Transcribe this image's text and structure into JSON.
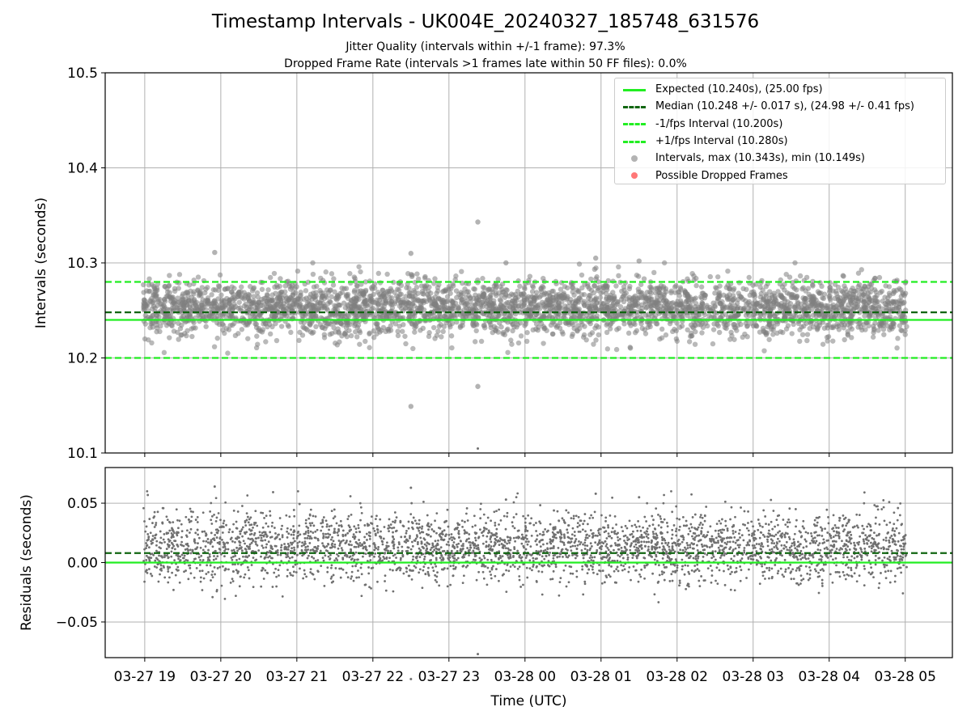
{
  "figure": {
    "title": "Timestamp Intervals - UK004E_20240327_185748_631576",
    "subtitle_1": "Jitter Quality (intervals within +/-1 frame): 97.3%",
    "subtitle_2": "Dropped Frame Rate (intervals >1 frames late within 50 FF files): 0.0%"
  },
  "legend": {
    "items": [
      {
        "label": "Expected (10.240s), (25.00 fps)",
        "style": "solid",
        "color": "#22ee22"
      },
      {
        "label": "Median (10.248 +/- 0.017 s), (24.98 +/- 0.41 fps)",
        "style": "dashed",
        "color": "#116611"
      },
      {
        "label": "-1/fps Interval (10.200s)",
        "style": "dashed",
        "color": "#22ee22"
      },
      {
        "label": "+1/fps Interval (10.280s)",
        "style": "dashed",
        "color": "#22ee22"
      },
      {
        "label": "Intervals, max (10.343s), min (10.149s)",
        "style": "dot",
        "color": "#808080"
      },
      {
        "label": "Possible Dropped Frames",
        "style": "dot",
        "color": "#ff5555"
      }
    ]
  },
  "chart_data": [
    {
      "type": "scatter",
      "name": "intervals",
      "title": "Timestamp Intervals - UK004E_20240327_185748_631576",
      "xlabel": "",
      "ylabel": "Intervals (seconds)",
      "ylim": [
        10.1,
        10.5
      ],
      "yticks": [
        10.1,
        10.2,
        10.3,
        10.4,
        10.5
      ],
      "ytick_labels": [
        "10.1",
        "10.2",
        "10.3",
        "10.4",
        "10.5"
      ],
      "grid": true,
      "legend_position": "top-right",
      "x_start_hours": 18.98,
      "x_end_hours": 29.02,
      "hlines": [
        {
          "name": "expected",
          "value": 10.24,
          "style": "solid",
          "color": "#22ee22"
        },
        {
          "name": "median",
          "value": 10.248,
          "style": "dashed",
          "color": "#116611"
        },
        {
          "name": "minus-1-fps",
          "value": 10.2,
          "style": "dashed",
          "color": "#22ee22"
        },
        {
          "name": "plus-1-fps",
          "value": 10.28,
          "style": "dashed",
          "color": "#22ee22"
        }
      ],
      "series": [
        {
          "name": "Intervals",
          "color": "#808080",
          "n_points": 3500,
          "max": 10.343,
          "min": 10.149,
          "center": 10.253,
          "spread": 0.017,
          "notable_points": [
            [
              23.38,
              10.343
            ],
            [
              22.5,
              10.149
            ],
            [
              23.38,
              10.17
            ],
            [
              19.92,
              10.311
            ],
            [
              22.5,
              10.31
            ],
            [
              23.75,
              10.3
            ],
            [
              24.93,
              10.305
            ],
            [
              25.5,
              10.302
            ]
          ]
        },
        {
          "name": "Possible Dropped Frames",
          "color": "#ff5555",
          "n_points": 0
        }
      ]
    },
    {
      "type": "scatter",
      "name": "residuals",
      "xlabel": "Time (UTC)",
      "ylabel": "Residuals (seconds)",
      "ylim": [
        -0.08,
        0.08
      ],
      "yticks": [
        -0.05,
        0.0,
        0.05
      ],
      "ytick_labels": [
        "−0.05",
        "0.00",
        "0.05"
      ],
      "grid": true,
      "x_start_hours": 18.98,
      "x_end_hours": 29.02,
      "xticks_hours": [
        19,
        20,
        21,
        22,
        23,
        24,
        25,
        26,
        27,
        28,
        29
      ],
      "xtick_labels": [
        "03-27 19",
        "03-27 20",
        "03-27 21",
        "03-27 22",
        "03-27 23",
        "03-28 00",
        "03-28 01",
        "03-28 02",
        "03-28 03",
        "03-28 04",
        "03-28 05"
      ],
      "hlines": [
        {
          "name": "zero",
          "value": 0.0,
          "style": "solid",
          "color": "#22ee22"
        },
        {
          "name": "median-residual",
          "value": 0.008,
          "style": "dashed",
          "color": "#116611"
        }
      ],
      "series": [
        {
          "name": "Residuals",
          "color": "#707070",
          "n_points": 3500,
          "center": 0.013,
          "spread": 0.017,
          "max": 0.074,
          "min": -0.07
        }
      ]
    }
  ]
}
